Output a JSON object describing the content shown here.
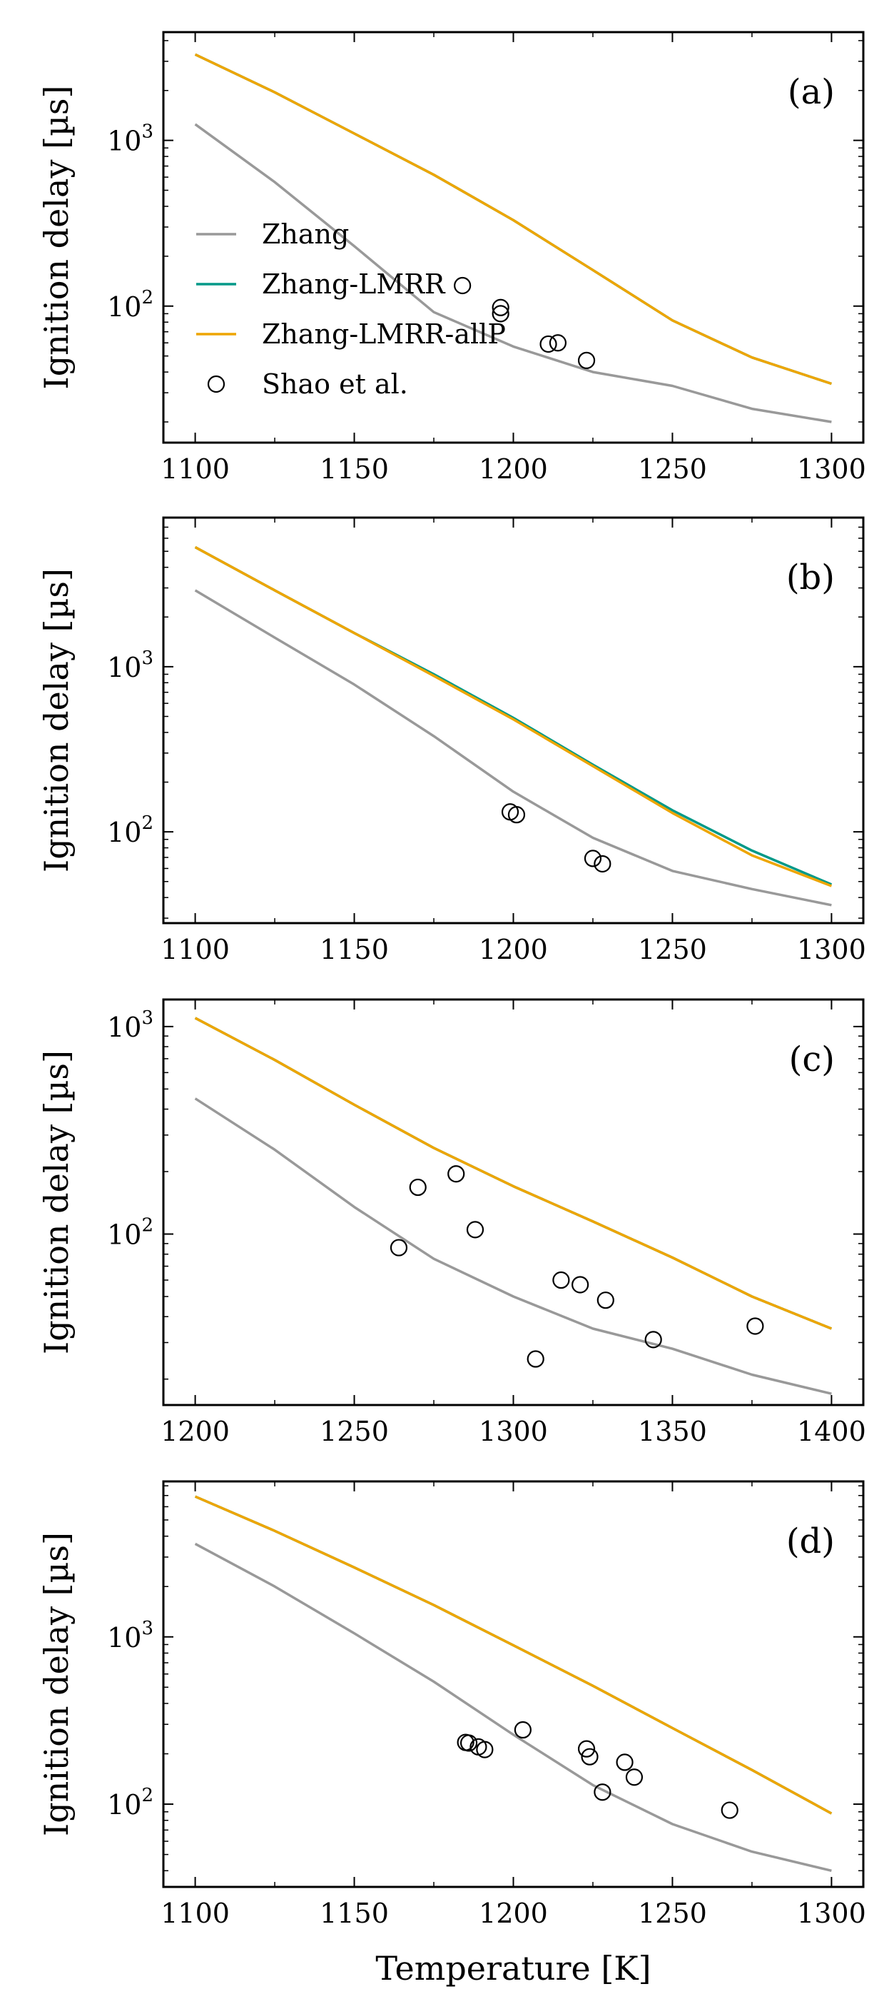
{
  "colors": {
    "Zhang": "#999999",
    "Zhang-LMRR": "#009988",
    "Zhang-LMRR-allP": "#EEA500",
    "Shao et al.": "#000000"
  },
  "legend": {
    "placement": "center-left of panel (a)",
    "entries": [
      "Zhang",
      "Zhang-LMRR",
      "Zhang-LMRR-allP",
      "Shao et al."
    ]
  },
  "chart_data": [
    {
      "type": "line",
      "panel_label": "(a)",
      "xlabel": "",
      "ylabel": "Ignition delay [µs]",
      "yscale": "log",
      "xlim": [
        1090,
        1310
      ],
      "ylim": [
        15,
        4500
      ],
      "xticks": [
        1100,
        1150,
        1200,
        1250,
        1300
      ],
      "yticks": [
        {
          "value": 100,
          "base": "10",
          "exp": "2"
        },
        {
          "value": 1000,
          "base": "10",
          "exp": "3"
        }
      ],
      "legend": true,
      "series": [
        {
          "name": "Zhang",
          "x": [
            1100,
            1125,
            1150,
            1175,
            1200,
            1225,
            1250,
            1275,
            1300
          ],
          "y": [
            1250,
            560,
            230,
            92,
            57,
            40,
            33,
            24,
            20
          ]
        },
        {
          "name": "Zhang-LMRR",
          "x": [
            1100,
            1125,
            1150,
            1175,
            1200,
            1225,
            1250,
            1275,
            1300
          ],
          "y": [
            3300,
            1950,
            1100,
            620,
            330,
            165,
            82,
            49,
            34
          ]
        },
        {
          "name": "Zhang-LMRR-allP",
          "x": [
            1100,
            1125,
            1150,
            1175,
            1200,
            1225,
            1250,
            1275,
            1300
          ],
          "y": [
            3300,
            1950,
            1100,
            620,
            330,
            165,
            82,
            49,
            34
          ]
        }
      ],
      "points": {
        "name": "Shao et al.",
        "x": [
          1184,
          1196,
          1196,
          1211,
          1214,
          1223
        ],
        "y": [
          133,
          98,
          90,
          59,
          60,
          47
        ]
      }
    },
    {
      "type": "line",
      "panel_label": "(b)",
      "xlabel": "",
      "ylabel": "Ignition delay [µs]",
      "yscale": "log",
      "xlim": [
        1090,
        1310
      ],
      "ylim": [
        28,
        8000
      ],
      "xticks": [
        1100,
        1150,
        1200,
        1250,
        1300
      ],
      "yticks": [
        {
          "value": 100,
          "base": "10",
          "exp": "2"
        },
        {
          "value": 1000,
          "base": "10",
          "exp": "3"
        }
      ],
      "legend": false,
      "series": [
        {
          "name": "Zhang",
          "x": [
            1100,
            1125,
            1150,
            1175,
            1200,
            1225,
            1250,
            1275,
            1300
          ],
          "y": [
            2900,
            1500,
            780,
            380,
            175,
            92,
            58,
            45,
            36
          ]
        },
        {
          "name": "Zhang-LMRR",
          "x": [
            1100,
            1125,
            1150,
            1175,
            1200,
            1225,
            1250,
            1275,
            1300
          ],
          "y": [
            5300,
            2900,
            1600,
            900,
            490,
            255,
            135,
            77,
            48
          ]
        },
        {
          "name": "Zhang-LMRR-allP",
          "x": [
            1100,
            1125,
            1150,
            1175,
            1200,
            1225,
            1250,
            1275,
            1300
          ],
          "y": [
            5300,
            2900,
            1600,
            880,
            480,
            250,
            130,
            72,
            47
          ]
        }
      ],
      "points": {
        "name": "Shao et al.",
        "x": [
          1199,
          1201,
          1225,
          1228
        ],
        "y": [
          132,
          127,
          69,
          64
        ]
      }
    },
    {
      "type": "line",
      "panel_label": "(c)",
      "xlabel": "",
      "ylabel": "Ignition delay [µs]",
      "yscale": "log",
      "xlim": [
        1190,
        1410
      ],
      "ylim": [
        15,
        1350
      ],
      "xticks": [
        1200,
        1250,
        1300,
        1350,
        1400
      ],
      "yticks": [
        {
          "value": 100,
          "base": "10",
          "exp": "2"
        },
        {
          "value": 1000,
          "base": "10",
          "exp": "3"
        }
      ],
      "legend": false,
      "series": [
        {
          "name": "Zhang",
          "x": [
            1200,
            1225,
            1250,
            1275,
            1300,
            1325,
            1350,
            1375,
            1400
          ],
          "y": [
            450,
            255,
            135,
            76,
            50,
            35,
            28,
            21,
            17
          ]
        },
        {
          "name": "Zhang-LMRR",
          "x": [
            1200,
            1225,
            1250,
            1275,
            1300,
            1325,
            1350,
            1375,
            1400
          ],
          "y": [
            1100,
            690,
            420,
            260,
            170,
            115,
            77,
            50,
            35
          ]
        },
        {
          "name": "Zhang-LMRR-allP",
          "x": [
            1200,
            1225,
            1250,
            1275,
            1300,
            1325,
            1350,
            1375,
            1400
          ],
          "y": [
            1100,
            690,
            420,
            260,
            170,
            115,
            77,
            50,
            35
          ]
        }
      ],
      "points": {
        "name": "Shao et al.",
        "x": [
          1264,
          1270,
          1282,
          1288,
          1307,
          1315,
          1321,
          1329,
          1344,
          1376
        ],
        "y": [
          86,
          168,
          195,
          105,
          25,
          60,
          57,
          48,
          31,
          36
        ]
      }
    },
    {
      "type": "line",
      "panel_label": "(d)",
      "xlabel": "Temperature [K]",
      "ylabel": "Ignition delay [µs]",
      "yscale": "log",
      "xlim": [
        1090,
        1310
      ],
      "ylim": [
        32,
        8500
      ],
      "xticks": [
        1100,
        1150,
        1200,
        1250,
        1300
      ],
      "yticks": [
        {
          "value": 100,
          "base": "10",
          "exp": "2"
        },
        {
          "value": 1000,
          "base": "10",
          "exp": "3"
        }
      ],
      "legend": false,
      "series": [
        {
          "name": "Zhang",
          "x": [
            1100,
            1125,
            1150,
            1175,
            1200,
            1225,
            1250,
            1275,
            1300
          ],
          "y": [
            3600,
            2000,
            1050,
            540,
            260,
            130,
            76,
            52,
            40
          ]
        },
        {
          "name": "Zhang-LMRR",
          "x": [
            1100,
            1125,
            1150,
            1175,
            1200,
            1225,
            1250,
            1275,
            1300
          ],
          "y": [
            6900,
            4300,
            2600,
            1550,
            890,
            510,
            285,
            160,
            88
          ]
        },
        {
          "name": "Zhang-LMRR-allP",
          "x": [
            1100,
            1125,
            1150,
            1175,
            1200,
            1225,
            1250,
            1275,
            1300
          ],
          "y": [
            6900,
            4300,
            2600,
            1550,
            890,
            510,
            285,
            160,
            88
          ]
        }
      ],
      "points": {
        "name": "Shao et al.",
        "x": [
          1185,
          1186,
          1189,
          1191,
          1203,
          1223,
          1224,
          1228,
          1235,
          1238,
          1268
        ],
        "y": [
          234,
          232,
          220,
          212,
          278,
          214,
          192,
          118,
          178,
          145,
          92
        ]
      }
    }
  ]
}
